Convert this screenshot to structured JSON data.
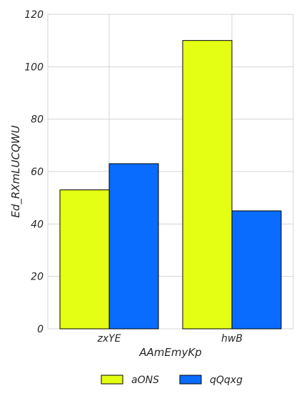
{
  "chart_data": {
    "type": "bar",
    "categories": [
      "zxYE",
      "hwB"
    ],
    "series": [
      {
        "name": "aONS",
        "values": [
          53,
          110
        ],
        "color": "#e5ff14"
      },
      {
        "name": "qQqxg",
        "values": [
          63,
          45
        ],
        "color": "#0a6bff"
      }
    ],
    "xlabel": "AAmEmyKp",
    "ylabel": "Ed_RXmLUCQWU",
    "ylim": [
      0,
      120
    ],
    "yticks": [
      0,
      20,
      40,
      60,
      80,
      100,
      120
    ],
    "grid": true,
    "legend": "bottom-center"
  }
}
